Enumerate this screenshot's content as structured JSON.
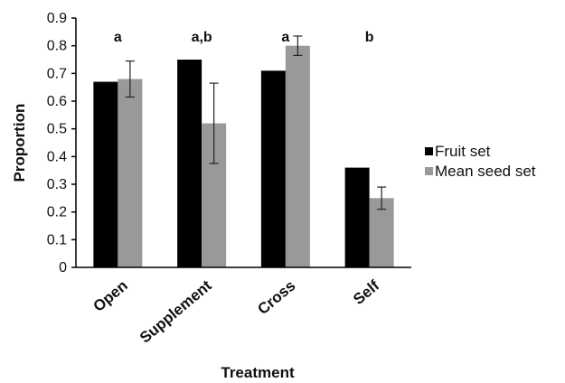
{
  "chart_data": {
    "type": "bar",
    "categories": [
      "Open",
      "Supplement",
      "Cross",
      "Self"
    ],
    "series": [
      {
        "name": "Fruit set",
        "color": "#000000",
        "values": [
          0.67,
          0.75,
          0.71,
          0.36
        ]
      },
      {
        "name": "Mean seed set",
        "color": "#999999",
        "values": [
          0.68,
          0.52,
          0.8,
          0.25
        ],
        "error": [
          0.065,
          0.145,
          0.035,
          0.04
        ]
      }
    ],
    "significance_labels": [
      "a",
      "a,b",
      "a",
      "b"
    ],
    "xlabel": "Treatment",
    "ylabel": "Proportion",
    "ylim": [
      0,
      0.9
    ],
    "yticks": [
      0,
      0.1,
      0.2,
      0.3,
      0.4,
      0.5,
      0.6,
      0.7,
      0.8,
      0.9
    ],
    "ytick_labels": [
      "0",
      "0.1",
      "0.2",
      "0.3",
      "0.4",
      "0.5",
      "0.6",
      "0.7",
      "0.8",
      "0.9"
    ],
    "grid": false,
    "legend_position": "right"
  }
}
